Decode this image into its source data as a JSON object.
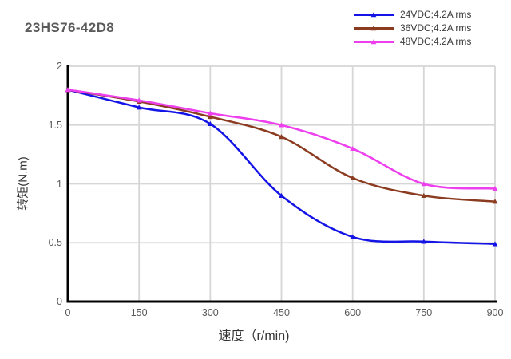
{
  "title": "23HS76-42D8",
  "chart_data": {
    "type": "line",
    "title": "23HS76-42D8",
    "xlabel": "速度（r/min)",
    "ylabel": "转矩(N.m)",
    "x": [
      0,
      150,
      300,
      450,
      600,
      750,
      900
    ],
    "x_ticks": [
      0,
      150,
      300,
      450,
      600,
      750,
      900
    ],
    "y_ticks": [
      0,
      0.5,
      1,
      1.5,
      2
    ],
    "xlim": [
      0,
      900
    ],
    "ylim": [
      0,
      2
    ],
    "grid": true,
    "legend_position": "top-right",
    "marker": "triangle",
    "colors": {
      "axis": "#000000",
      "gridline": "#d6d6d6",
      "tick_text": "#595959",
      "title_text": "#5a5a5a"
    },
    "series": [
      {
        "name": "24VDC;4.2A rms",
        "color": "#1414e6",
        "values": [
          1.8,
          1.65,
          1.51,
          0.9,
          0.55,
          0.51,
          0.49
        ]
      },
      {
        "name": "36VDC;4.2A rms",
        "color": "#8b3b20",
        "values": [
          1.8,
          1.7,
          1.57,
          1.4,
          1.05,
          0.9,
          0.85
        ]
      },
      {
        "name": "48VDC;4.2A rms",
        "color": "#ee3fee",
        "values": [
          1.8,
          1.71,
          1.6,
          1.5,
          1.3,
          1.0,
          0.96
        ]
      }
    ]
  }
}
